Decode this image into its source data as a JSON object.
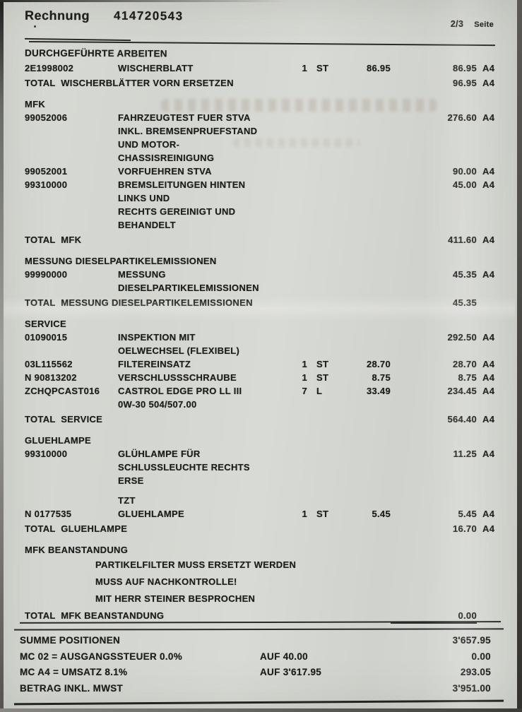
{
  "header": {
    "doc_type_label": "Rechnung",
    "invoice_number": "414720543",
    "page_number": "2/3",
    "page_label": "Seite"
  },
  "work_section_title": "DURCHGEFÜHRTE ARBEITEN",
  "rows": [
    {
      "type": "item",
      "code": "2E1998002",
      "desc": [
        "WISCHERBLATT"
      ],
      "qty": "1",
      "unit": "ST",
      "unit_price": "86.95",
      "amount": "86.95",
      "tax": "A4"
    },
    {
      "type": "total",
      "label": "TOTAL  WISCHERBLÄTTER VORN ERSETZEN",
      "amount": "96.95",
      "tax": "A4"
    },
    {
      "type": "section",
      "label": "MFK"
    },
    {
      "type": "item",
      "code": "99052006",
      "desc": [
        "FAHRZEUGTEST FUER STVA",
        "INKL. BREMSENPRUEFSTAND",
        "UND MOTOR-",
        "CHASSISREINIGUNG"
      ],
      "qty": "",
      "unit": "",
      "unit_price": "",
      "amount": "276.60",
      "tax": "A4"
    },
    {
      "type": "item",
      "code": "99052001",
      "desc": [
        "VORFUEHREN STVA"
      ],
      "qty": "",
      "unit": "",
      "unit_price": "",
      "amount": "90.00",
      "tax": "A4"
    },
    {
      "type": "item",
      "code": "99310000",
      "desc": [
        "BREMSLEITUNGEN HINTEN",
        "LINKS UND",
        "RECHTS GEREINIGT UND",
        "BEHANDELT"
      ],
      "qty": "",
      "unit": "",
      "unit_price": "",
      "amount": "45.00",
      "tax": "A4"
    },
    {
      "type": "total",
      "label": "TOTAL  MFK",
      "amount": "411.60",
      "tax": "A4"
    },
    {
      "type": "section",
      "label": "MESSUNG DIESELPARTIKELEMISSIONEN"
    },
    {
      "type": "item",
      "code": "99990000",
      "desc": [
        "MESSUNG",
        "DIESELPARTIKELEMISSIONEN"
      ],
      "qty": "",
      "unit": "",
      "unit_price": "",
      "amount": "45.35",
      "tax": "A4"
    },
    {
      "type": "total",
      "label": "TOTAL  MESSUNG DIESELPARTIKELEMISSIONEN",
      "amount": "45.35",
      "tax": ""
    },
    {
      "type": "section",
      "label": "SERVICE"
    },
    {
      "type": "item",
      "code": "01090015",
      "desc": [
        "INSPEKTION MIT",
        "OELWECHSEL (FLEXIBEL)"
      ],
      "qty": "",
      "unit": "",
      "unit_price": "",
      "amount": "292.50",
      "tax": "A4"
    },
    {
      "type": "item",
      "code": "03L115562",
      "desc": [
        "FILTEREINSATZ"
      ],
      "qty": "1",
      "unit": "ST",
      "unit_price": "28.70",
      "amount": "28.70",
      "tax": "A4"
    },
    {
      "type": "item",
      "code": "N 90813202",
      "desc": [
        "VERSCHLUSSSCHRAUBE"
      ],
      "qty": "1",
      "unit": "ST",
      "unit_price": "8.75",
      "amount": "8.75",
      "tax": "A4"
    },
    {
      "type": "item",
      "code": "ZCHQPCAST016",
      "desc": [
        "CASTROL EDGE PRO LL III",
        "0W-30 504/507.00"
      ],
      "qty": "7",
      "unit": "L",
      "unit_price": "33.49",
      "amount": "234.45",
      "tax": "A4"
    },
    {
      "type": "total",
      "label": "TOTAL  SERVICE",
      "amount": "564.40",
      "tax": "A4"
    },
    {
      "type": "section",
      "label": "GLUEHLAMPE"
    },
    {
      "type": "item",
      "code": "99310000",
      "desc": [
        "GLÜHLAMPE FÜR",
        "SCHLUSSLEUCHTE RECHTS",
        "ERSE",
        "",
        "TZT"
      ],
      "qty": "",
      "unit": "",
      "unit_price": "",
      "amount": "11.25",
      "tax": "A4"
    },
    {
      "type": "item",
      "code": "N 0177535",
      "desc": [
        "GLUEHLAMPE"
      ],
      "qty": "1",
      "unit": "ST",
      "unit_price": "5.45",
      "amount": "5.45",
      "tax": "A4"
    },
    {
      "type": "total",
      "label": "TOTAL  GLUEHLAMPE",
      "amount": "16.70",
      "tax": "A4"
    },
    {
      "type": "section",
      "label": "MFK BEANSTANDUNG"
    },
    {
      "type": "note",
      "label": "PARTIKELFILTER MUSS ERSETZT WERDEN"
    },
    {
      "type": "note",
      "label": "MUSS AUF NACHKONTROLLE!"
    },
    {
      "type": "note",
      "label": "MIT HERR STEINER BESPROCHEN"
    },
    {
      "type": "total",
      "label": "TOTAL  MFK BEANSTANDUNG",
      "amount": "0.00",
      "tax": "",
      "underline_amount": true
    }
  ],
  "summary": {
    "rows": [
      {
        "label": "SUMME POSITIONEN",
        "mid": "",
        "amount": "3'657.95"
      },
      {
        "label": "MC 02 = AUSGANGSSTEUER 0.0%",
        "mid": "AUF 40.00",
        "amount": "0.00"
      },
      {
        "label": "MC A4 = UMSATZ 8.1%",
        "mid": "AUF 3'617.95",
        "amount": "293.05"
      },
      {
        "label": "BETRAG INKL. MWST",
        "mid": "",
        "amount": "3'951.00"
      }
    ]
  }
}
